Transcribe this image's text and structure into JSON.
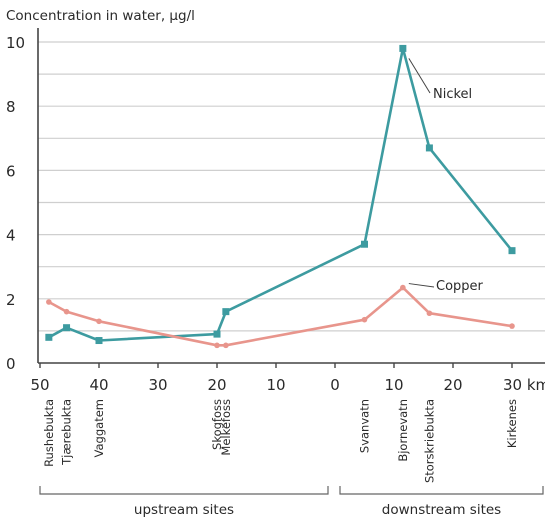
{
  "chart_data": {
    "type": "line",
    "title": "Concentration in water, μg/l",
    "xlabel": "",
    "ylabel": "",
    "ylim": [
      0,
      10
    ],
    "xlim": [
      50,
      -30
    ],
    "grid": "horizontal",
    "y_ticks": [
      0,
      2,
      4,
      6,
      8,
      10
    ],
    "x_ticks": [
      {
        "value": 50,
        "label": "50"
      },
      {
        "value": 40,
        "label": "40"
      },
      {
        "value": 30,
        "label": "30"
      },
      {
        "value": 20,
        "label": "20"
      },
      {
        "value": 10,
        "label": "10"
      },
      {
        "value": 0,
        "label": "0"
      },
      {
        "value": -10,
        "label": "10"
      },
      {
        "value": -20,
        "label": "20"
      },
      {
        "value": -30,
        "label": "30 km"
      }
    ],
    "sites": [
      {
        "name": "Rushebukta",
        "x": 48.5
      },
      {
        "name": "Tjærebukta",
        "x": 45.5
      },
      {
        "name": "Vaggatem",
        "x": 40
      },
      {
        "name": "Skogfoss",
        "x": 20
      },
      {
        "name": "Melkefoss",
        "x": 18.5
      },
      {
        "name": "Svanvatn",
        "x": -5
      },
      {
        "name": "Bjornevatn",
        "x": -11.5
      },
      {
        "name": "Storskriebukta",
        "x": -16
      },
      {
        "name": "Kirkenes",
        "x": -30
      }
    ],
    "series": [
      {
        "name": "Nickel",
        "color": "#3d9ba0",
        "points": [
          [
            48.5,
            0.8
          ],
          [
            45.5,
            1.1
          ],
          [
            40,
            0.7
          ],
          [
            20,
            0.9
          ],
          [
            18.5,
            1.6
          ],
          [
            -5,
            3.7
          ],
          [
            -11.5,
            9.8
          ],
          [
            -16,
            6.7
          ],
          [
            -30,
            3.5
          ]
        ]
      },
      {
        "name": "Copper",
        "color": "#e8958c",
        "points": [
          [
            48.5,
            1.9
          ],
          [
            45.5,
            1.6
          ],
          [
            40,
            1.3
          ],
          [
            20,
            0.55
          ],
          [
            18.5,
            0.55
          ],
          [
            -5,
            1.35
          ],
          [
            -11.5,
            2.35
          ],
          [
            -16,
            1.55
          ],
          [
            -30,
            1.15
          ]
        ]
      }
    ],
    "groups": [
      {
        "label": "upstream sites"
      },
      {
        "label": "downstream sites"
      }
    ]
  }
}
